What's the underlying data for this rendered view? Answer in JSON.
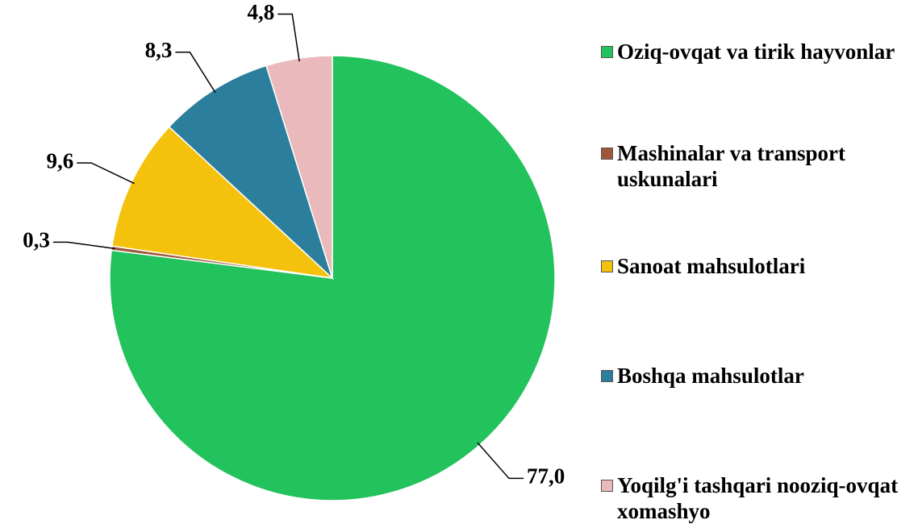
{
  "chart_data": {
    "type": "pie",
    "categories": [
      "Oziq-ovqat va tirik hayvonlar",
      "Mashinalar va transport uskunalari",
      "Sanoat mahsulotlari",
      "Boshqa mahsulotlar",
      "Yoqilg'i tashqari nooziq-ovqat xomashyo"
    ],
    "values": [
      77.0,
      0.3,
      9.6,
      8.3,
      4.8
    ],
    "value_labels": [
      "77,0",
      "0,3",
      "9,6",
      "8,3",
      "4,8"
    ],
    "colors": [
      "#22c25c",
      "#a0563a",
      "#f4c20d",
      "#2b7f9c",
      "#e9b9bc"
    ],
    "legend": "right"
  }
}
